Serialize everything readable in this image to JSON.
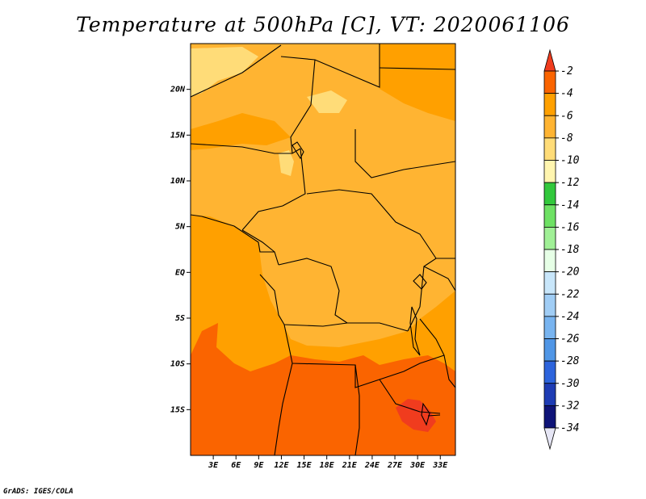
{
  "title": "Temperature at 500hPa [C], VT: 2020061106",
  "footer": "GrADS: IGES/COLA",
  "map": {
    "lon_range": [
      0,
      35
    ],
    "lat_range": [
      -20,
      25
    ],
    "lon_ticks": [
      "3E",
      "6E",
      "9E",
      "12E",
      "15E",
      "18E",
      "21E",
      "24E",
      "27E",
      "30E",
      "33E"
    ],
    "lon_tick_values": [
      3,
      6,
      9,
      12,
      15,
      18,
      21,
      24,
      27,
      30,
      33
    ],
    "lat_ticks": [
      "20N",
      "15N",
      "10N",
      "5N",
      "EQ",
      "5S",
      "10S",
      "15S"
    ],
    "lat_tick_values": [
      20,
      15,
      10,
      5,
      0,
      -5,
      -10,
      -15
    ]
  },
  "colorbar": {
    "labels": [
      "-2",
      "-4",
      "-6",
      "-8",
      "-10",
      "-12",
      "-14",
      "-16",
      "-18",
      "-20",
      "-22",
      "-24",
      "-26",
      "-28",
      "-30",
      "-32",
      "-34"
    ],
    "colors": [
      "#f03c1e",
      "#fa6400",
      "#ffa000",
      "#ffb432",
      "#ffdc78",
      "#fff5af",
      "#32c83c",
      "#6ee164",
      "#a0f096",
      "#e6ffe6",
      "#c8e6fa",
      "#a0cdf5",
      "#78b4f0",
      "#5096e6",
      "#2d64dc",
      "#1e3cb4",
      "#0f1478",
      "#e6e6f5"
    ]
  },
  "colors": {
    "orange_light": "#ffb432",
    "orange": "#ffa000",
    "orange_dark": "#fa6400",
    "yellow": "#ffdc78"
  }
}
